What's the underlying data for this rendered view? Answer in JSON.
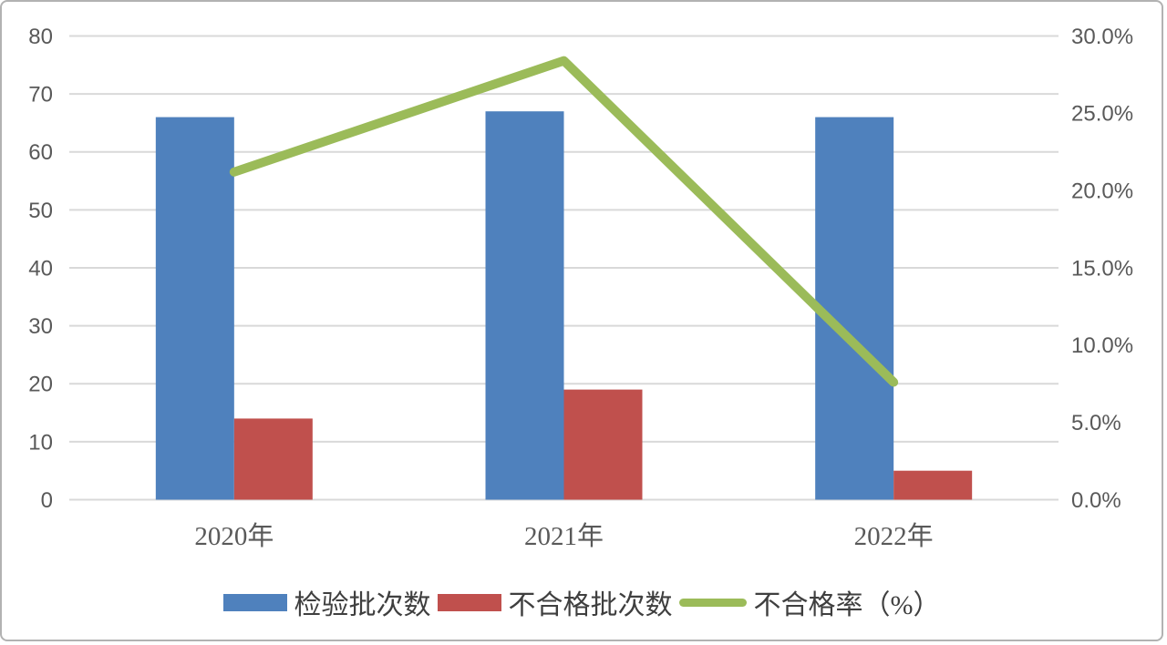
{
  "chart_data": {
    "type": "bar",
    "subtype": "combo-bar-line",
    "title": "",
    "categories": [
      "2020年",
      "2021年",
      "2022年"
    ],
    "series": [
      {
        "name": "检验批次数",
        "type": "bar",
        "axis": "left",
        "color": "#4F81BD",
        "values": [
          66,
          67,
          66
        ]
      },
      {
        "name": "不合格批次数",
        "type": "bar",
        "axis": "left",
        "color": "#C0504D",
        "values": [
          14,
          19,
          5
        ]
      },
      {
        "name": "不合格率（%）",
        "type": "line",
        "axis": "right",
        "color": "#9BBB59",
        "values": [
          21.2,
          28.4,
          7.6
        ]
      }
    ],
    "left_axis": {
      "min": 0,
      "max": 80,
      "step": 10,
      "tick_labels": [
        "0",
        "10",
        "20",
        "30",
        "40",
        "50",
        "60",
        "70",
        "80"
      ]
    },
    "right_axis": {
      "min": 0,
      "max": 30,
      "step": 5,
      "tick_labels": [
        "0.0%",
        "5.0%",
        "10.0%",
        "15.0%",
        "20.0%",
        "25.0%",
        "30.0%"
      ]
    },
    "grid": true,
    "legend_position": "bottom",
    "gridline_color": "#D9D9D9",
    "tick_text_color": "#595959"
  }
}
